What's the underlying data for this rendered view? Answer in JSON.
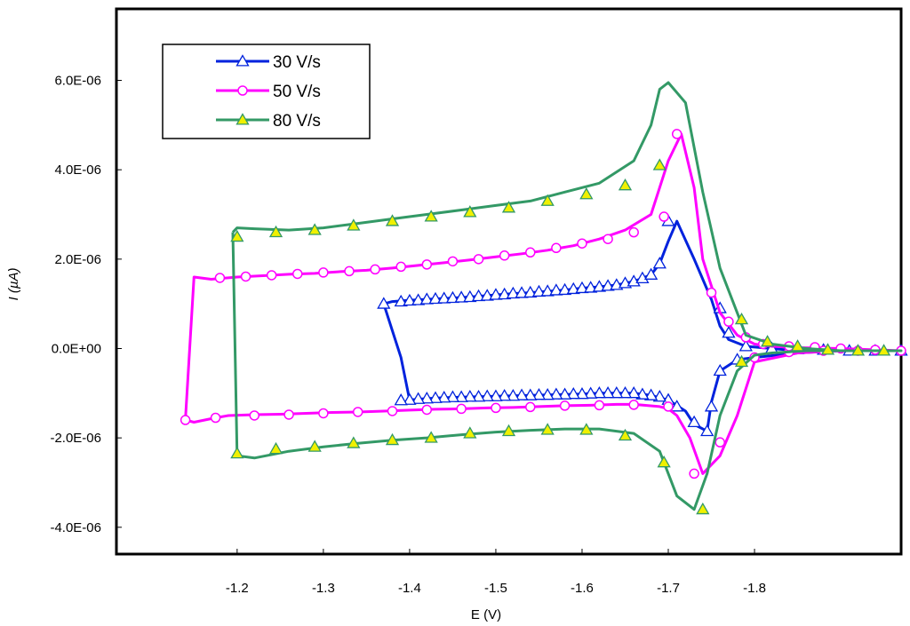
{
  "chart_data": {
    "type": "line",
    "title": "",
    "xlabel": "E (V)",
    "ylabel": "I (µA)",
    "xlim": [
      -1.06,
      -1.97
    ],
    "ylim": [
      -4.6e-06,
      7.6e-06
    ],
    "grid": false,
    "legend_position": "top-left",
    "x_ticks": [
      {
        "value": -1.2,
        "label": "-1.2"
      },
      {
        "value": -1.3,
        "label": "-1.3"
      },
      {
        "value": -1.4,
        "label": "-1.4"
      },
      {
        "value": -1.5,
        "label": "-1.5"
      },
      {
        "value": -1.6,
        "label": "-1.6"
      },
      {
        "value": -1.7,
        "label": "-1.7"
      },
      {
        "value": -1.8,
        "label": "-1.8"
      }
    ],
    "y_ticks": [
      {
        "value": 6e-06,
        "label": "6.0E-06"
      },
      {
        "value": 4e-06,
        "label": "4.0E-06"
      },
      {
        "value": 2e-06,
        "label": "2.0E-06"
      },
      {
        "value": 0.0,
        "label": "0.0E+00"
      },
      {
        "value": -2e-06,
        "label": "-2.0E-06"
      },
      {
        "value": -4e-06,
        "label": "-4.0E-06"
      }
    ],
    "series": [
      {
        "name": "30 V/s",
        "color": "#0022dd",
        "marker": "open-triangle",
        "marker_fill": "#ffffff",
        "x": [
          -1.37,
          -1.38,
          -1.4,
          -1.42,
          -1.44,
          -1.46,
          -1.48,
          -1.5,
          -1.52,
          -1.54,
          -1.56,
          -1.58,
          -1.6,
          -1.62,
          -1.64,
          -1.66,
          -1.68,
          -1.69,
          -1.7,
          -1.71,
          -1.73,
          -1.75,
          -1.76,
          -1.77,
          -1.79,
          -1.82,
          -1.85,
          -1.9,
          -1.97,
          -1.9,
          -1.85,
          -1.8,
          -1.78,
          -1.76,
          -1.75,
          -1.745,
          -1.73,
          -1.72,
          -1.7,
          -1.68,
          -1.66,
          -1.64,
          -1.62,
          -1.6,
          -1.58,
          -1.56,
          -1.54,
          -1.52,
          -1.5,
          -1.48,
          -1.46,
          -1.44,
          -1.42,
          -1.4,
          -1.39,
          -1.37
        ],
        "y": [
          1e-06,
          1.05e-06,
          1.08e-06,
          1.1e-06,
          1.12e-06,
          1.14e-06,
          1.17e-06,
          1.2e-06,
          1.23e-06,
          1.25e-06,
          1.28e-06,
          1.31e-06,
          1.35e-06,
          1.38e-06,
          1.42e-06,
          1.5e-06,
          1.65e-06,
          1.9e-06,
          2.4e-06,
          2.85e-06,
          2e-06,
          1.1e-06,
          5e-07,
          2e-07,
          5e-08,
          0.0,
          -5e-08,
          -5e-08,
          -5e-08,
          -5e-08,
          -1e-07,
          -2e-07,
          -2.5e-07,
          -5e-07,
          -1.2e-06,
          -1.85e-06,
          -1.7e-06,
          -1.4e-06,
          -1.15e-06,
          -1.05e-06,
          -1e-06,
          -1e-06,
          -1e-06,
          -1.02e-06,
          -1.03e-06,
          -1.04e-06,
          -1.05e-06,
          -1.06e-06,
          -1.07e-06,
          -1.08e-06,
          -1.09e-06,
          -1.1e-06,
          -1.12e-06,
          -1.15e-06,
          -2e-07,
          1e-06
        ],
        "marker_x": [
          -1.37,
          -1.39,
          -1.4,
          -1.41,
          -1.42,
          -1.43,
          -1.44,
          -1.45,
          -1.46,
          -1.47,
          -1.48,
          -1.49,
          -1.5,
          -1.51,
          -1.52,
          -1.53,
          -1.54,
          -1.55,
          -1.56,
          -1.57,
          -1.58,
          -1.59,
          -1.6,
          -1.61,
          -1.62,
          -1.63,
          -1.64,
          -1.65,
          -1.66,
          -1.67,
          -1.68,
          -1.69,
          -1.7,
          -1.76,
          -1.77,
          -1.79,
          -1.82,
          -1.85,
          -1.88,
          -1.91,
          -1.94,
          -1.97,
          -1.78,
          -1.76,
          -1.75,
          -1.745,
          -1.73,
          -1.71,
          -1.7,
          -1.69,
          -1.68,
          -1.67,
          -1.66,
          -1.65,
          -1.64,
          -1.63,
          -1.62,
          -1.61,
          -1.6,
          -1.59,
          -1.58,
          -1.57,
          -1.56,
          -1.55,
          -1.54,
          -1.53,
          -1.52,
          -1.51,
          -1.5,
          -1.49,
          -1.48,
          -1.47,
          -1.46,
          -1.45,
          -1.44,
          -1.43,
          -1.42,
          -1.41,
          -1.4,
          -1.39
        ],
        "marker_y": [
          1e-06,
          1.05e-06,
          1.07e-06,
          1.08e-06,
          1.1e-06,
          1.11e-06,
          1.12e-06,
          1.13e-06,
          1.14e-06,
          1.15e-06,
          1.17e-06,
          1.18e-06,
          1.2e-06,
          1.21e-06,
          1.23e-06,
          1.24e-06,
          1.25e-06,
          1.27e-06,
          1.28e-06,
          1.3e-06,
          1.31e-06,
          1.33e-06,
          1.35e-06,
          1.36e-06,
          1.38e-06,
          1.4e-06,
          1.42e-06,
          1.46e-06,
          1.5e-06,
          1.57e-06,
          1.65e-06,
          1.9e-06,
          2.85e-06,
          9e-07,
          3.5e-07,
          5e-08,
          0.0,
          -2e-08,
          -3e-08,
          -5e-08,
          -5e-08,
          -5e-08,
          -2.5e-07,
          -5e-07,
          -1.3e-06,
          -1.85e-06,
          -1.65e-06,
          -1.3e-06,
          -1.15e-06,
          -1.08e-06,
          -1.05e-06,
          -1.03e-06,
          -1e-06,
          -1e-06,
          -1e-06,
          -1e-06,
          -1e-06,
          -1.01e-06,
          -1.02e-06,
          -1.02e-06,
          -1.03e-06,
          -1.03e-06,
          -1.04e-06,
          -1.04e-06,
          -1.05e-06,
          -1.05e-06,
          -1.06e-06,
          -1.06e-06,
          -1.07e-06,
          -1.07e-06,
          -1.08e-06,
          -1.08e-06,
          -1.09e-06,
          -1.09e-06,
          -1.1e-06,
          -1.11e-06,
          -1.12e-06,
          -1.13e-06,
          -1.15e-06,
          -1.16e-06
        ]
      },
      {
        "name": "50 V/s",
        "color": "#ff00ff",
        "marker": "open-circle",
        "marker_fill": "#ffffff",
        "x": [
          -1.14,
          -1.15,
          -1.175,
          -1.19,
          -1.22,
          -1.25,
          -1.28,
          -1.31,
          -1.34,
          -1.37,
          -1.4,
          -1.43,
          -1.46,
          -1.49,
          -1.52,
          -1.55,
          -1.58,
          -1.61,
          -1.64,
          -1.66,
          -1.69,
          -1.7,
          -1.71,
          -1.725,
          -1.74,
          -1.76,
          -1.78,
          -1.8,
          -1.85,
          -1.9,
          -1.97,
          -1.9,
          -1.85,
          -1.82,
          -1.8,
          -1.78,
          -1.76,
          -1.74,
          -1.73,
          -1.715,
          -1.7,
          -1.68,
          -1.65,
          -1.62,
          -1.59,
          -1.56,
          -1.53,
          -1.5,
          -1.47,
          -1.44,
          -1.41,
          -1.38,
          -1.35,
          -1.32,
          -1.29,
          -1.26,
          -1.23,
          -1.2,
          -1.17,
          -1.15,
          -1.14
        ],
        "y": [
          -1.6e-06,
          -1.65e-06,
          -1.55e-06,
          -1.5e-06,
          -1.48e-06,
          -1.47e-06,
          -1.45e-06,
          -1.43e-06,
          -1.42e-06,
          -1.4e-06,
          -1.38e-06,
          -1.36e-06,
          -1.35e-06,
          -1.33e-06,
          -1.32e-06,
          -1.3e-06,
          -1.28e-06,
          -1.27e-06,
          -1.25e-06,
          -1.25e-06,
          -1.3e-06,
          -1.35e-06,
          -1.5e-06,
          -2e-06,
          -2.8e-06,
          -2.4e-06,
          -1.5e-06,
          -3e-07,
          -1e-07,
          -5e-08,
          -5e-08,
          0.0,
          2e-08,
          5e-08,
          1e-07,
          3e-07,
          8e-07,
          2e-06,
          3.6e-06,
          4.8e-06,
          4.2e-06,
          3e-06,
          2.65e-06,
          2.45e-06,
          2.3e-06,
          2.2e-06,
          2.12e-06,
          2.05e-06,
          1.98e-06,
          1.92e-06,
          1.86e-06,
          1.8e-06,
          1.75e-06,
          1.72e-06,
          1.68e-06,
          1.66e-06,
          1.63e-06,
          1.6e-06,
          1.55e-06,
          1.6e-06,
          -1.6e-06
        ],
        "marker_x": [
          -1.14,
          -1.175,
          -1.22,
          -1.26,
          -1.3,
          -1.34,
          -1.38,
          -1.42,
          -1.46,
          -1.5,
          -1.54,
          -1.58,
          -1.62,
          -1.66,
          -1.7,
          -1.73,
          -1.76,
          -1.8,
          -1.84,
          -1.88,
          -1.92,
          -1.97,
          -1.94,
          -1.9,
          -1.87,
          -1.84,
          -1.81,
          -1.79,
          -1.77,
          -1.75,
          -1.71,
          -1.695,
          -1.66,
          -1.63,
          -1.6,
          -1.57,
          -1.54,
          -1.51,
          -1.48,
          -1.45,
          -1.42,
          -1.39,
          -1.36,
          -1.33,
          -1.3,
          -1.27,
          -1.24,
          -1.21,
          -1.18
        ],
        "marker_y": [
          -1.6e-06,
          -1.55e-06,
          -1.5e-06,
          -1.48e-06,
          -1.45e-06,
          -1.42e-06,
          -1.4e-06,
          -1.37e-06,
          -1.35e-06,
          -1.33e-06,
          -1.31e-06,
          -1.28e-06,
          -1.27e-06,
          -1.26e-06,
          -1.3e-06,
          -2.8e-06,
          -2.1e-06,
          -2e-07,
          -8e-08,
          -5e-08,
          -5e-08,
          -5e-08,
          -3e-08,
          0.0,
          3e-08,
          5e-08,
          1e-07,
          2.5e-07,
          6e-07,
          1.25e-06,
          4.8e-06,
          2.95e-06,
          2.6e-06,
          2.45e-06,
          2.35e-06,
          2.25e-06,
          2.15e-06,
          2.08e-06,
          2e-06,
          1.95e-06,
          1.88e-06,
          1.83e-06,
          1.77e-06,
          1.73e-06,
          1.7e-06,
          1.67e-06,
          1.64e-06,
          1.61e-06,
          1.58e-06
        ]
      },
      {
        "name": "80 V/s",
        "color": "#339966",
        "marker": "filled-triangle",
        "marker_fill": "#f0f000",
        "x": [
          -1.195,
          -1.2,
          -1.22,
          -1.26,
          -1.3,
          -1.34,
          -1.38,
          -1.42,
          -1.46,
          -1.5,
          -1.54,
          -1.58,
          -1.62,
          -1.66,
          -1.68,
          -1.69,
          -1.7,
          -1.72,
          -1.74,
          -1.76,
          -1.79,
          -1.82,
          -1.86,
          -1.9,
          -1.97,
          -1.9,
          -1.86,
          -1.82,
          -1.8,
          -1.78,
          -1.76,
          -1.745,
          -1.73,
          -1.71,
          -1.69,
          -1.66,
          -1.62,
          -1.58,
          -1.54,
          -1.5,
          -1.46,
          -1.42,
          -1.38,
          -1.34,
          -1.3,
          -1.26,
          -1.22,
          -1.2,
          -1.195
        ],
        "y": [
          2.6e-06,
          2.7e-06,
          2.68e-06,
          2.65e-06,
          2.7e-06,
          2.8e-06,
          2.9e-06,
          3e-06,
          3.1e-06,
          3.2e-06,
          3.3e-06,
          3.5e-06,
          3.7e-06,
          4.2e-06,
          5e-06,
          5.8e-06,
          5.95e-06,
          5.5e-06,
          3.5e-06,
          1.8e-06,
          3e-07,
          1e-07,
          0.0,
          -5e-08,
          -5e-08,
          -5e-08,
          -5e-08,
          -1e-07,
          -1.5e-07,
          -5e-07,
          -1.5e-06,
          -2.8e-06,
          -3.6e-06,
          -3.3e-06,
          -2.3e-06,
          -1.9e-06,
          -1.8e-06,
          -1.8e-06,
          -1.83e-06,
          -1.87e-06,
          -1.93e-06,
          -2e-06,
          -2.05e-06,
          -2.12e-06,
          -2.2e-06,
          -2.3e-06,
          -2.45e-06,
          -2.4e-06,
          2.6e-06
        ],
        "marker_x": [
          -1.2,
          -1.245,
          -1.29,
          -1.335,
          -1.38,
          -1.425,
          -1.47,
          -1.515,
          -1.56,
          -1.605,
          -1.65,
          -1.69,
          -1.785,
          -1.815,
          -1.85,
          -1.885,
          -1.92,
          -1.95,
          -1.785,
          -1.74,
          -1.695,
          -1.65,
          -1.605,
          -1.56,
          -1.515,
          -1.47,
          -1.425,
          -1.38,
          -1.335,
          -1.29,
          -1.245,
          -1.2
        ],
        "marker_y": [
          2.5e-06,
          2.6e-06,
          2.65e-06,
          2.75e-06,
          2.85e-06,
          2.95e-06,
          3.05e-06,
          3.15e-06,
          3.3e-06,
          3.45e-06,
          3.65e-06,
          4.1e-06,
          6.5e-07,
          1.5e-07,
          5e-08,
          -3e-08,
          -5e-08,
          -5e-08,
          -3e-07,
          -3.6e-06,
          -2.55e-06,
          -1.95e-06,
          -1.82e-06,
          -1.82e-06,
          -1.85e-06,
          -1.9e-06,
          -2e-06,
          -2.05e-06,
          -2.12e-06,
          -2.2e-06,
          -2.25e-06,
          -2.35e-06
        ]
      }
    ]
  }
}
